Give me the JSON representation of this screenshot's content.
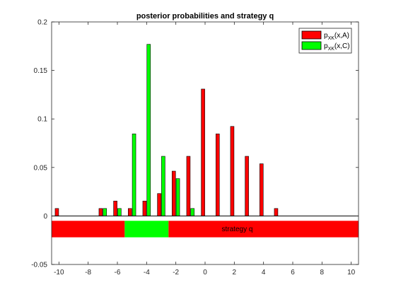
{
  "chart_data": {
    "type": "bar",
    "title": "posterior probabilities and strategy q",
    "xlabel": "",
    "ylabel": "",
    "xlim": [
      -10.5,
      10.5
    ],
    "ylim": [
      -0.05,
      0.2
    ],
    "xticks": [
      -10,
      -8,
      -6,
      -4,
      -2,
      0,
      2,
      4,
      6,
      8,
      10
    ],
    "yticks": [
      -0.05,
      0,
      0.05,
      0.1,
      0.15,
      0.2
    ],
    "ytick_labels": [
      "-0.05",
      "0",
      "0.05",
      "0.1",
      "0.15",
      "0.2"
    ],
    "legend": {
      "position": "top-right",
      "entries": [
        {
          "base": "p",
          "sub": "XK",
          "suffix": "(x,A)",
          "color": "#ff0000"
        },
        {
          "base": "p",
          "sub": "XK",
          "suffix": "(x,C)",
          "color": "#00ff00"
        }
      ]
    },
    "series": [
      {
        "name": "pXK(x,A)",
        "color": "#ff0000",
        "x": [
          -10,
          -7,
          -6,
          -5,
          -4,
          -3,
          -2,
          -1,
          0,
          1,
          2,
          3,
          4,
          5
        ],
        "values": [
          0.0077,
          0.0077,
          0.0154,
          0.0077,
          0.0154,
          0.0231,
          0.0462,
          0.0615,
          0.1308,
          0.0846,
          0.0923,
          0.0615,
          0.0538,
          0.0077
        ]
      },
      {
        "name": "pXK(x,C)",
        "color": "#00ff00",
        "x": [
          -7,
          -6,
          -5,
          -4,
          -3,
          -2,
          -1
        ],
        "values": [
          0.0077,
          0.0077,
          0.0846,
          0.1769,
          0.0615,
          0.0385,
          0.0077
        ]
      }
    ],
    "strategy": {
      "label": "strategy q",
      "y_range": [
        -0.022,
        -0.005
      ],
      "segments": [
        {
          "from": -10.5,
          "to": -5.5,
          "class": "A",
          "color": "#ff0000"
        },
        {
          "from": -5.5,
          "to": -2.5,
          "class": "C",
          "color": "#00ff00"
        },
        {
          "from": -2.5,
          "to": 10.5,
          "class": "A",
          "color": "#ff0000"
        }
      ]
    }
  }
}
